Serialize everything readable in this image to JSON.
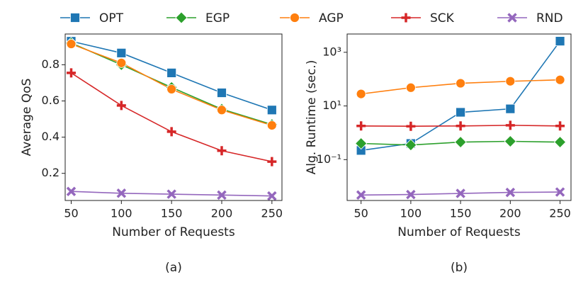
{
  "chart_data": [
    {
      "type": "line",
      "caption": "(a)",
      "x_label": "Number of Requests",
      "y_label": "Average QoS",
      "x": [
        50,
        100,
        150,
        200,
        250
      ],
      "xlim": [
        44,
        260
      ],
      "xticks": [
        50,
        100,
        150,
        200,
        250
      ],
      "ylim": [
        0.05,
        0.97
      ],
      "yticks": [
        0.2,
        0.4,
        0.6,
        0.8
      ],
      "series": [
        {
          "name": "OPT",
          "color": "#1f77b4",
          "marker": "square",
          "values": [
            0.93,
            0.865,
            0.755,
            0.645,
            0.55
          ]
        },
        {
          "name": "EGP",
          "color": "#2ca02c",
          "marker": "diamond",
          "values": [
            0.92,
            0.8,
            0.675,
            0.555,
            0.47
          ]
        },
        {
          "name": "AGP",
          "color": "#ff7f0e",
          "marker": "circle",
          "values": [
            0.915,
            0.81,
            0.665,
            0.55,
            0.465
          ]
        },
        {
          "name": "SCK",
          "color": "#d62728",
          "marker": "plus",
          "values": [
            0.755,
            0.575,
            0.43,
            0.325,
            0.265
          ]
        },
        {
          "name": "RND",
          "color": "#9467bd",
          "marker": "x",
          "values": [
            0.1,
            0.09,
            0.085,
            0.08,
            0.075
          ]
        }
      ]
    },
    {
      "type": "line",
      "caption": "(b)",
      "x_label": "Number of Requests",
      "y_label": "Alg. Runtime (sec.)",
      "x": [
        50,
        100,
        150,
        200,
        250
      ],
      "xlim": [
        36,
        261
      ],
      "xticks": [
        50,
        100,
        150,
        200,
        250
      ],
      "log_y": true,
      "ylim": [
        0.003,
        4800
      ],
      "yticks": [
        {
          "value": 0.1,
          "label": "10⁻¹"
        },
        {
          "value": 10,
          "label": "10¹"
        },
        {
          "value": 1000,
          "label": "10³"
        }
      ],
      "series": [
        {
          "color": "#1f77b4",
          "marker": "square",
          "values": [
            0.22,
            0.4,
            5.8,
            7.8,
            2600
          ]
        },
        {
          "color": "#2ca02c",
          "marker": "diamond",
          "values": [
            0.4,
            0.35,
            0.45,
            0.48,
            0.45
          ]
        },
        {
          "color": "#ff7f0e",
          "marker": "circle",
          "values": [
            28,
            48,
            70,
            83,
            94
          ]
        },
        {
          "color": "#d62728",
          "marker": "plus",
          "values": [
            1.8,
            1.75,
            1.8,
            1.9,
            1.8
          ]
        },
        {
          "color": "#9467bd",
          "marker": "x",
          "values": [
            0.0048,
            0.005,
            0.0055,
            0.006,
            0.0062
          ]
        }
      ]
    }
  ]
}
